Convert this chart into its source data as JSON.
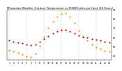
{
  "title": "Milwaukee Weather Outdoor Temperature vs THSW Index per Hour (24 Hours)",
  "title_fontsize": 2.8,
  "background_color": "#ffffff",
  "hours": [
    1,
    2,
    3,
    4,
    5,
    6,
    7,
    8,
    9,
    10,
    11,
    12,
    13,
    14,
    15,
    16,
    17,
    18,
    19,
    20,
    21,
    22,
    23,
    24
  ],
  "temp_values": [
    56,
    55,
    54,
    53,
    52,
    51,
    52,
    55,
    58,
    61,
    64,
    66,
    68,
    68,
    66,
    64,
    62,
    60,
    59,
    58,
    57,
    56,
    55,
    54
  ],
  "thsw_values": [
    46,
    44,
    43,
    41,
    39,
    38,
    42,
    50,
    60,
    70,
    77,
    82,
    85,
    86,
    82,
    75,
    67,
    60,
    56,
    52,
    49,
    47,
    45,
    44
  ],
  "temp_color": "#cc0000",
  "thsw_color": "#ff8800",
  "dot_size": 2.5,
  "ylim": [
    35,
    90
  ],
  "ytick_positions": [
    40,
    50,
    60,
    70,
    80,
    90
  ],
  "ytick_labels": [
    "40",
    "50",
    "60",
    "70",
    "80",
    "90"
  ],
  "xlabel_fontsize": 2.2,
  "ylabel_fontsize": 2.3,
  "grid_color": "#bbbbbb",
  "vgrid_hours": [
    1,
    5,
    9,
    13,
    17,
    21,
    25
  ]
}
